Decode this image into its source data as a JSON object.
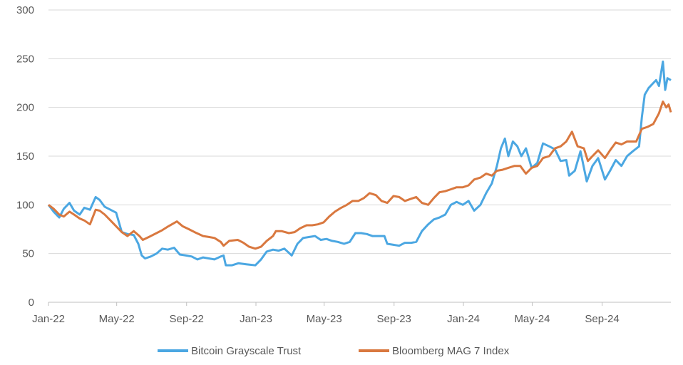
{
  "chart_data": {
    "type": "line",
    "title": "",
    "xlabel": "",
    "ylabel": "",
    "x_ticks": [
      "Jan-22",
      "May-22",
      "Sep-22",
      "Jan-23",
      "May-23",
      "Sep-23",
      "Jan-24",
      "May-24",
      "Sep-24"
    ],
    "y_ticks": [
      0,
      50,
      100,
      150,
      200,
      250,
      300
    ],
    "ylim": [
      0,
      300
    ],
    "xlim": [
      "2022-01-01",
      "2024-12-31"
    ],
    "grid": true,
    "legend_position": "bottom",
    "series": [
      {
        "name": "Bitcoin Grayscale Trust",
        "color": "#4BA7E2",
        "points": [
          [
            "2022-01-01",
            100
          ],
          [
            "2022-01-10",
            93
          ],
          [
            "2022-01-20",
            87
          ],
          [
            "2022-01-28",
            96
          ],
          [
            "2022-02-07",
            102
          ],
          [
            "2022-02-15",
            94
          ],
          [
            "2022-02-25",
            90
          ],
          [
            "2022-03-05",
            97
          ],
          [
            "2022-03-15",
            95
          ],
          [
            "2022-03-25",
            108
          ],
          [
            "2022-04-01",
            105
          ],
          [
            "2022-04-10",
            98
          ],
          [
            "2022-04-20",
            95
          ],
          [
            "2022-04-30",
            92
          ],
          [
            "2022-05-10",
            72
          ],
          [
            "2022-05-20",
            70
          ],
          [
            "2022-05-31",
            69
          ],
          [
            "2022-06-08",
            60
          ],
          [
            "2022-06-14",
            48
          ],
          [
            "2022-06-20",
            45
          ],
          [
            "2022-06-30",
            47
          ],
          [
            "2022-07-10",
            50
          ],
          [
            "2022-07-20",
            55
          ],
          [
            "2022-07-30",
            54
          ],
          [
            "2022-08-10",
            56
          ],
          [
            "2022-08-20",
            49
          ],
          [
            "2022-08-31",
            48
          ],
          [
            "2022-09-10",
            47
          ],
          [
            "2022-09-20",
            44
          ],
          [
            "2022-09-30",
            46
          ],
          [
            "2022-10-10",
            45
          ],
          [
            "2022-10-20",
            44
          ],
          [
            "2022-10-31",
            47
          ],
          [
            "2022-11-05",
            48
          ],
          [
            "2022-11-09",
            38
          ],
          [
            "2022-11-20",
            38
          ],
          [
            "2022-12-01",
            40
          ],
          [
            "2022-12-15",
            39
          ],
          [
            "2022-12-31",
            38
          ],
          [
            "2023-01-10",
            44
          ],
          [
            "2023-01-20",
            52
          ],
          [
            "2023-01-31",
            54
          ],
          [
            "2023-02-10",
            53
          ],
          [
            "2023-02-20",
            55
          ],
          [
            "2023-03-05",
            48
          ],
          [
            "2023-03-15",
            60
          ],
          [
            "2023-03-25",
            66
          ],
          [
            "2023-04-05",
            67
          ],
          [
            "2023-04-15",
            68
          ],
          [
            "2023-04-25",
            64
          ],
          [
            "2023-05-05",
            65
          ],
          [
            "2023-05-15",
            63
          ],
          [
            "2023-05-25",
            62
          ],
          [
            "2023-06-05",
            60
          ],
          [
            "2023-06-15",
            62
          ],
          [
            "2023-06-25",
            71
          ],
          [
            "2023-07-05",
            71
          ],
          [
            "2023-07-15",
            70
          ],
          [
            "2023-07-25",
            68
          ],
          [
            "2023-08-05",
            68
          ],
          [
            "2023-08-15",
            68
          ],
          [
            "2023-08-20",
            60
          ],
          [
            "2023-08-31",
            59
          ],
          [
            "2023-09-10",
            58
          ],
          [
            "2023-09-20",
            61
          ],
          [
            "2023-10-01",
            61
          ],
          [
            "2023-10-10",
            62
          ],
          [
            "2023-10-20",
            73
          ],
          [
            "2023-10-31",
            80
          ],
          [
            "2023-11-10",
            85
          ],
          [
            "2023-11-20",
            87
          ],
          [
            "2023-11-30",
            90
          ],
          [
            "2023-12-10",
            100
          ],
          [
            "2023-12-20",
            103
          ],
          [
            "2023-12-31",
            100
          ],
          [
            "2024-01-10",
            104
          ],
          [
            "2024-01-20",
            94
          ],
          [
            "2024-01-31",
            100
          ],
          [
            "2024-02-10",
            112
          ],
          [
            "2024-02-20",
            122
          ],
          [
            "2024-02-29",
            140
          ],
          [
            "2024-03-07",
            158
          ],
          [
            "2024-03-14",
            168
          ],
          [
            "2024-03-20",
            150
          ],
          [
            "2024-03-28",
            165
          ],
          [
            "2024-04-05",
            160
          ],
          [
            "2024-04-12",
            150
          ],
          [
            "2024-04-20",
            158
          ],
          [
            "2024-04-30",
            138
          ],
          [
            "2024-05-10",
            143
          ],
          [
            "2024-05-20",
            163
          ],
          [
            "2024-05-31",
            160
          ],
          [
            "2024-06-10",
            157
          ],
          [
            "2024-06-20",
            145
          ],
          [
            "2024-06-30",
            146
          ],
          [
            "2024-07-05",
            130
          ],
          [
            "2024-07-15",
            135
          ],
          [
            "2024-07-25",
            155
          ],
          [
            "2024-08-05",
            124
          ],
          [
            "2024-08-15",
            140
          ],
          [
            "2024-08-25",
            148
          ],
          [
            "2024-09-06",
            126
          ],
          [
            "2024-09-15",
            135
          ],
          [
            "2024-09-25",
            146
          ],
          [
            "2024-10-05",
            140
          ],
          [
            "2024-10-15",
            150
          ],
          [
            "2024-10-25",
            155
          ],
          [
            "2024-11-05",
            160
          ],
          [
            "2024-11-10",
            190
          ],
          [
            "2024-11-15",
            213
          ],
          [
            "2024-11-22",
            220
          ],
          [
            "2024-11-30",
            225
          ],
          [
            "2024-12-05",
            228
          ],
          [
            "2024-12-10",
            222
          ],
          [
            "2024-12-17",
            247
          ],
          [
            "2024-12-21",
            218
          ],
          [
            "2024-12-25",
            230
          ],
          [
            "2024-12-31",
            228
          ]
        ]
      },
      {
        "name": "Bloomberg MAG 7 Index",
        "color": "#D9783F",
        "points": [
          [
            "2022-01-01",
            100
          ],
          [
            "2022-01-10",
            96
          ],
          [
            "2022-01-20",
            90
          ],
          [
            "2022-01-28",
            88
          ],
          [
            "2022-02-07",
            93
          ],
          [
            "2022-02-15",
            90
          ],
          [
            "2022-02-25",
            86
          ],
          [
            "2022-03-05",
            84
          ],
          [
            "2022-03-15",
            80
          ],
          [
            "2022-03-25",
            95
          ],
          [
            "2022-04-01",
            94
          ],
          [
            "2022-04-10",
            90
          ],
          [
            "2022-04-20",
            84
          ],
          [
            "2022-04-30",
            78
          ],
          [
            "2022-05-10",
            72
          ],
          [
            "2022-05-20",
            68
          ],
          [
            "2022-05-31",
            73
          ],
          [
            "2022-06-10",
            68
          ],
          [
            "2022-06-16",
            64
          ],
          [
            "2022-06-30",
            68
          ],
          [
            "2022-07-10",
            71
          ],
          [
            "2022-07-20",
            74
          ],
          [
            "2022-07-31",
            78
          ],
          [
            "2022-08-15",
            83
          ],
          [
            "2022-08-25",
            78
          ],
          [
            "2022-09-05",
            75
          ],
          [
            "2022-09-15",
            72
          ],
          [
            "2022-09-30",
            68
          ],
          [
            "2022-10-10",
            67
          ],
          [
            "2022-10-20",
            66
          ],
          [
            "2022-10-31",
            62
          ],
          [
            "2022-11-05",
            58
          ],
          [
            "2022-11-15",
            63
          ],
          [
            "2022-11-30",
            64
          ],
          [
            "2022-12-10",
            61
          ],
          [
            "2022-12-20",
            57
          ],
          [
            "2022-12-31",
            55
          ],
          [
            "2023-01-10",
            57
          ],
          [
            "2023-01-20",
            63
          ],
          [
            "2023-01-31",
            68
          ],
          [
            "2023-02-05",
            73
          ],
          [
            "2023-02-15",
            73
          ],
          [
            "2023-02-28",
            71
          ],
          [
            "2023-03-10",
            72
          ],
          [
            "2023-03-20",
            76
          ],
          [
            "2023-03-31",
            79
          ],
          [
            "2023-04-10",
            79
          ],
          [
            "2023-04-20",
            80
          ],
          [
            "2023-04-30",
            82
          ],
          [
            "2023-05-10",
            88
          ],
          [
            "2023-05-20",
            93
          ],
          [
            "2023-05-31",
            97
          ],
          [
            "2023-06-10",
            100
          ],
          [
            "2023-06-20",
            104
          ],
          [
            "2023-06-30",
            104
          ],
          [
            "2023-07-10",
            107
          ],
          [
            "2023-07-20",
            112
          ],
          [
            "2023-07-31",
            110
          ],
          [
            "2023-08-10",
            104
          ],
          [
            "2023-08-20",
            102
          ],
          [
            "2023-08-31",
            109
          ],
          [
            "2023-09-10",
            108
          ],
          [
            "2023-09-20",
            104
          ],
          [
            "2023-09-30",
            106
          ],
          [
            "2023-10-10",
            108
          ],
          [
            "2023-10-20",
            102
          ],
          [
            "2023-10-31",
            100
          ],
          [
            "2023-11-10",
            107
          ],
          [
            "2023-11-20",
            113
          ],
          [
            "2023-11-30",
            114
          ],
          [
            "2023-12-10",
            116
          ],
          [
            "2023-12-20",
            118
          ],
          [
            "2023-12-31",
            118
          ],
          [
            "2024-01-10",
            120
          ],
          [
            "2024-01-20",
            126
          ],
          [
            "2024-01-31",
            128
          ],
          [
            "2024-02-10",
            132
          ],
          [
            "2024-02-20",
            130
          ],
          [
            "2024-02-29",
            135
          ],
          [
            "2024-03-10",
            136
          ],
          [
            "2024-03-20",
            138
          ],
          [
            "2024-03-31",
            140
          ],
          [
            "2024-04-10",
            140
          ],
          [
            "2024-04-20",
            132
          ],
          [
            "2024-04-30",
            138
          ],
          [
            "2024-05-10",
            140
          ],
          [
            "2024-05-20",
            148
          ],
          [
            "2024-05-31",
            150
          ],
          [
            "2024-06-10",
            158
          ],
          [
            "2024-06-20",
            160
          ],
          [
            "2024-06-30",
            165
          ],
          [
            "2024-07-10",
            175
          ],
          [
            "2024-07-20",
            160
          ],
          [
            "2024-07-31",
            158
          ],
          [
            "2024-08-07",
            145
          ],
          [
            "2024-08-15",
            150
          ],
          [
            "2024-08-25",
            156
          ],
          [
            "2024-09-06",
            148
          ],
          [
            "2024-09-15",
            156
          ],
          [
            "2024-09-25",
            164
          ],
          [
            "2024-10-05",
            162
          ],
          [
            "2024-10-15",
            165
          ],
          [
            "2024-10-31",
            165
          ],
          [
            "2024-11-10",
            178
          ],
          [
            "2024-11-20",
            180
          ],
          [
            "2024-11-30",
            183
          ],
          [
            "2024-12-10",
            194
          ],
          [
            "2024-12-17",
            206
          ],
          [
            "2024-12-23",
            200
          ],
          [
            "2024-12-27",
            203
          ],
          [
            "2024-12-31",
            195
          ]
        ]
      }
    ]
  }
}
